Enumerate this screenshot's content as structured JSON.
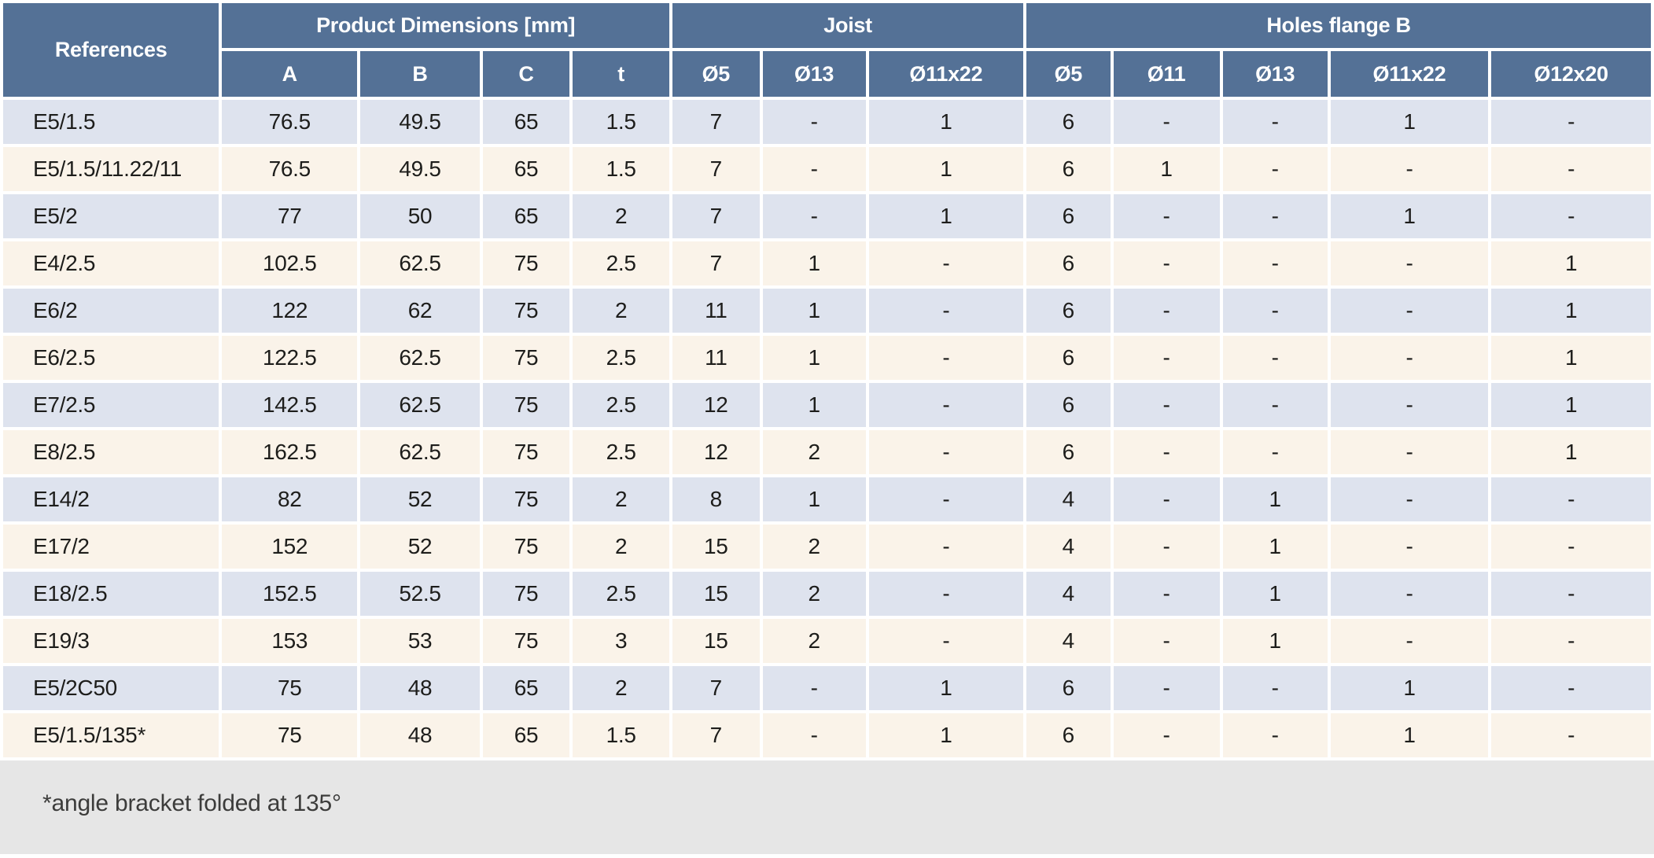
{
  "table": {
    "reference_header": "References",
    "groups": [
      {
        "label": "Product Dimensions [mm]",
        "columns": [
          "A",
          "B",
          "C",
          "t"
        ]
      },
      {
        "label": "Joist",
        "columns": [
          "Ø5",
          "Ø13",
          "Ø11x22"
        ]
      },
      {
        "label": "Holes flange B",
        "columns": [
          "Ø5",
          "Ø11",
          "Ø13",
          "Ø11x22",
          "Ø12x20"
        ]
      }
    ],
    "rows": [
      {
        "reference": "E5/1.5",
        "values": [
          "76.5",
          "49.5",
          "65",
          "1.5",
          "7",
          "-",
          "1",
          "6",
          "-",
          "-",
          "1",
          "-"
        ]
      },
      {
        "reference": "E5/1.5/11.22/11",
        "values": [
          "76.5",
          "49.5",
          "65",
          "1.5",
          "7",
          "-",
          "1",
          "6",
          "1",
          "-",
          "-",
          "-"
        ]
      },
      {
        "reference": "E5/2",
        "values": [
          "77",
          "50",
          "65",
          "2",
          "7",
          "-",
          "1",
          "6",
          "-",
          "-",
          "1",
          "-"
        ]
      },
      {
        "reference": "E4/2.5",
        "values": [
          "102.5",
          "62.5",
          "75",
          "2.5",
          "7",
          "1",
          "-",
          "6",
          "-",
          "-",
          "-",
          "1"
        ]
      },
      {
        "reference": "E6/2",
        "values": [
          "122",
          "62",
          "75",
          "2",
          "11",
          "1",
          "-",
          "6",
          "-",
          "-",
          "-",
          "1"
        ]
      },
      {
        "reference": "E6/2.5",
        "values": [
          "122.5",
          "62.5",
          "75",
          "2.5",
          "11",
          "1",
          "-",
          "6",
          "-",
          "-",
          "-",
          "1"
        ]
      },
      {
        "reference": "E7/2.5",
        "values": [
          "142.5",
          "62.5",
          "75",
          "2.5",
          "12",
          "1",
          "-",
          "6",
          "-",
          "-",
          "-",
          "1"
        ]
      },
      {
        "reference": "E8/2.5",
        "values": [
          "162.5",
          "62.5",
          "75",
          "2.5",
          "12",
          "2",
          "-",
          "6",
          "-",
          "-",
          "-",
          "1"
        ]
      },
      {
        "reference": "E14/2",
        "values": [
          "82",
          "52",
          "75",
          "2",
          "8",
          "1",
          "-",
          "4",
          "-",
          "1",
          "-",
          "-"
        ]
      },
      {
        "reference": "E17/2",
        "values": [
          "152",
          "52",
          "75",
          "2",
          "15",
          "2",
          "-",
          "4",
          "-",
          "1",
          "-",
          "-"
        ]
      },
      {
        "reference": "E18/2.5",
        "values": [
          "152.5",
          "52.5",
          "75",
          "2.5",
          "15",
          "2",
          "-",
          "4",
          "-",
          "1",
          "-",
          "-"
        ]
      },
      {
        "reference": "E19/3",
        "values": [
          "153",
          "53",
          "75",
          "3",
          "15",
          "2",
          "-",
          "4",
          "-",
          "1",
          "-",
          "-"
        ]
      },
      {
        "reference": "E5/2C50",
        "values": [
          "75",
          "48",
          "65",
          "2",
          "7",
          "-",
          "1",
          "6",
          "-",
          "-",
          "1",
          "-"
        ]
      },
      {
        "reference": "E5/1.5/135*",
        "values": [
          "75",
          "48",
          "65",
          "1.5",
          "7",
          "-",
          "1",
          "6",
          "-",
          "-",
          "1",
          "-"
        ]
      }
    ],
    "footnote": "*angle bracket folded at 135°"
  },
  "colors": {
    "header_bg": "#547196",
    "row_blue_bg": "#dee3ee",
    "row_cream_bg": "#faf3e9",
    "footer_bg": "#e6e6e6",
    "header_text": "#ffffff",
    "cell_text": "#1d1d1b"
  }
}
